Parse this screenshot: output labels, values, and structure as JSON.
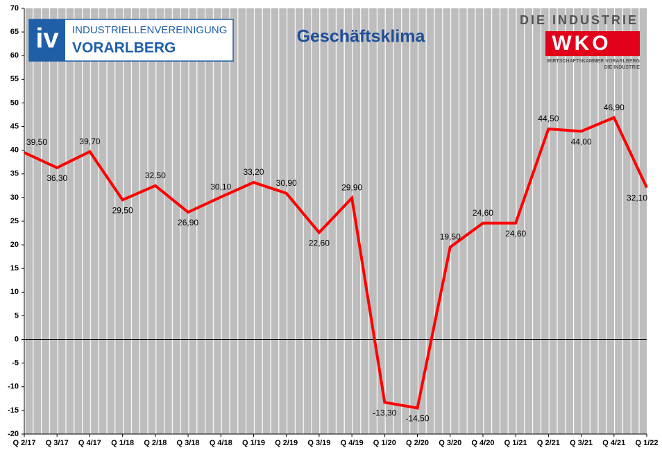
{
  "chart_data": {
    "type": "line",
    "title": "Geschäftsklima",
    "categories": [
      "Q 2/17",
      "Q 3/17",
      "Q 4/17",
      "Q 1/18",
      "Q 2/18",
      "Q 3/18",
      "Q 4/18",
      "Q 1/19",
      "Q 2/19",
      "Q 3/19",
      "Q 4/19",
      "Q 1/20",
      "Q 2/20",
      "Q 3/20",
      "Q 4/20",
      "Q 1/21",
      "Q 2/21",
      "Q 3/21",
      "Q 4/21",
      "Q 1/22"
    ],
    "series": [
      {
        "color": "#ff0000",
        "values": [
          39.5,
          36.3,
          39.7,
          29.5,
          32.5,
          26.9,
          30.1,
          33.2,
          30.9,
          22.6,
          29.9,
          -13.3,
          -14.5,
          19.5,
          24.6,
          24.6,
          44.5,
          44.0,
          46.9,
          32.1
        ],
        "value_labels": [
          "39,50",
          "36,30",
          "39,70",
          "29,50",
          "32,50",
          "26,90",
          "30,10",
          "33,20",
          "30,90",
          "22,60",
          "29,90",
          "-13,30",
          "-14,50",
          "19,50",
          "24,60",
          "24,60",
          "44,50",
          "44,00",
          "46,90",
          "32,10"
        ]
      }
    ],
    "ylim": [
      -20,
      70
    ],
    "yticks": [
      -20,
      -15,
      -10,
      -5,
      0,
      5,
      10,
      15,
      20,
      25,
      30,
      35,
      40,
      45,
      50,
      55,
      60,
      65,
      70
    ]
  },
  "logos": {
    "iv": "iv",
    "iv_line1": "INDUSTRIELLENVEREINIGUNG",
    "iv_line2": "VORARLBERG",
    "wko_top": "DIE INDUSTRIE",
    "wko": "WKO",
    "wko_sub1": "WIRTSCHAFTSKAMMER VORARLBERG",
    "wko_sub2": "DIE INDUSTRIE"
  }
}
